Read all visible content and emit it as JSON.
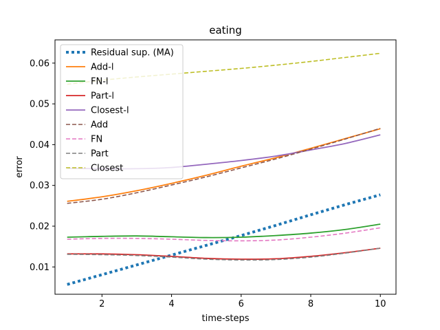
{
  "chart_data": {
    "type": "line",
    "title": "eating",
    "xlabel": "time-steps",
    "ylabel": "error",
    "xlim": [
      0.65,
      10.45
    ],
    "ylim": [
      0.0033,
      0.0657
    ],
    "xticks": [
      2,
      4,
      6,
      8,
      10
    ],
    "yticks": [
      0.01,
      0.02,
      0.03,
      0.04,
      0.05,
      0.06
    ],
    "ytick_labels": [
      "0.01",
      "0.02",
      "0.03",
      "0.04",
      "0.05",
      "0.06"
    ],
    "grid": false,
    "legend": "upper-left",
    "x": [
      1,
      2,
      3,
      4,
      5,
      6,
      7,
      8,
      9,
      10
    ],
    "series": [
      {
        "name": "Residual sup. (MA)",
        "color": "#1f77b4",
        "style": "dotted",
        "values": [
          0.0057,
          0.0081,
          0.0105,
          0.0129,
          0.0153,
          0.0177,
          0.0202,
          0.0228,
          0.0253,
          0.0277
        ]
      },
      {
        "name": "Add-l",
        "color": "#ff7f0e",
        "style": "solid",
        "values": [
          0.0261,
          0.0272,
          0.0287,
          0.0305,
          0.0325,
          0.0347,
          0.0368,
          0.0391,
          0.0415,
          0.0439
        ]
      },
      {
        "name": "FN-l",
        "color": "#2ca02c",
        "style": "solid",
        "values": [
          0.0173,
          0.0175,
          0.0176,
          0.0174,
          0.0172,
          0.0173,
          0.0177,
          0.0183,
          0.0192,
          0.0205
        ]
      },
      {
        "name": "Part-l",
        "color": "#d62728",
        "style": "solid",
        "values": [
          0.0132,
          0.0132,
          0.013,
          0.0126,
          0.0121,
          0.0119,
          0.012,
          0.0126,
          0.0135,
          0.0146
        ]
      },
      {
        "name": "Closest-l",
        "color": "#9467bd",
        "style": "solid",
        "values": [
          0.0342,
          0.0341,
          0.0341,
          0.0344,
          0.0352,
          0.0361,
          0.0372,
          0.0387,
          0.0403,
          0.0424
        ]
      },
      {
        "name": "Add",
        "color": "#8c564b",
        "style": "dashed",
        "values": [
          0.0256,
          0.0266,
          0.0282,
          0.0301,
          0.0321,
          0.0343,
          0.0365,
          0.0389,
          0.0414,
          0.044
        ]
      },
      {
        "name": "FN",
        "color": "#e377c2",
        "style": "dashed",
        "values": [
          0.0168,
          0.017,
          0.017,
          0.0168,
          0.0165,
          0.0164,
          0.0166,
          0.0173,
          0.0183,
          0.0196
        ]
      },
      {
        "name": "Part",
        "color": "#7f7f7f",
        "style": "dashed",
        "values": [
          0.0131,
          0.013,
          0.0128,
          0.0124,
          0.0119,
          0.0117,
          0.0118,
          0.0124,
          0.0134,
          0.0146
        ]
      },
      {
        "name": "Closest",
        "color": "#bcbd22",
        "style": "dashed",
        "values": [
          0.0548,
          0.0558,
          0.0566,
          0.0573,
          0.058,
          0.0587,
          0.0595,
          0.0604,
          0.0614,
          0.0624
        ]
      }
    ]
  }
}
